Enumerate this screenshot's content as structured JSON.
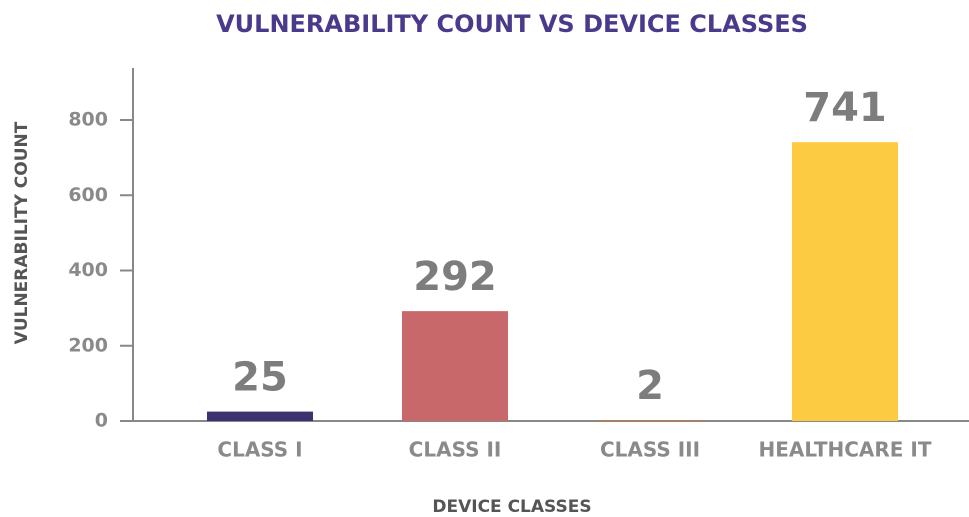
{
  "chart_data": {
    "type": "bar",
    "title": "VULNERABILITY COUNT VS DEVICE CLASSES",
    "xlabel": "DEVICE CLASSES",
    "ylabel": "VULNERABILITY COUNT",
    "categories": [
      "CLASS I",
      "CLASS II",
      "CLASS III",
      "HEALTHCARE IT"
    ],
    "values": [
      25,
      292,
      2,
      741
    ],
    "colors": [
      "#3b3370",
      "#c9686a",
      "#c07a4a",
      "#fccb41"
    ],
    "ylim": [
      0,
      900
    ],
    "yticks": [
      0,
      200,
      400,
      600,
      800
    ],
    "grid": false
  }
}
